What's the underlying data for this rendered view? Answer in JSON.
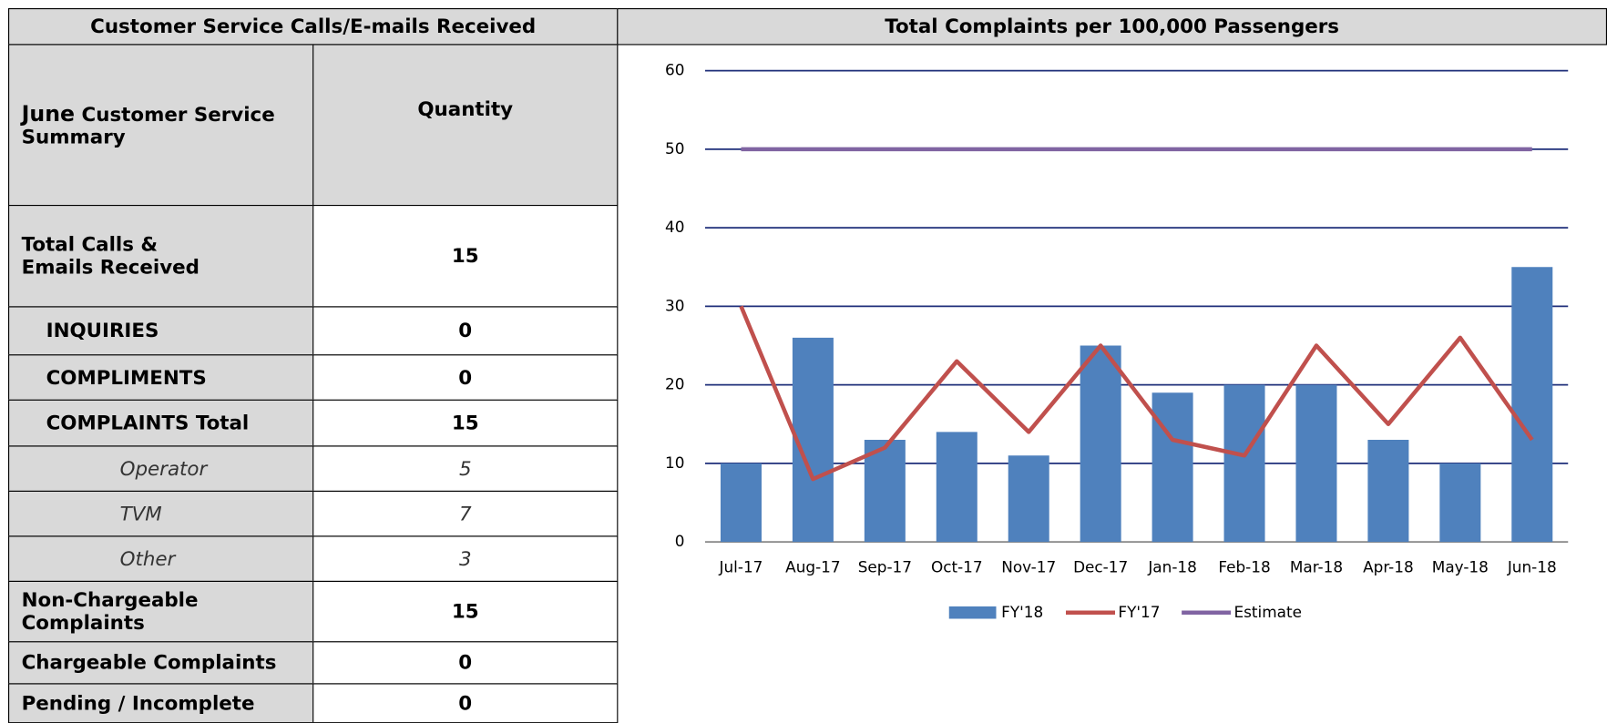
{
  "table": {
    "title": "Customer Service Calls/E-mails Received",
    "header": {
      "month": "June",
      "label": "Customer Service Summary",
      "quantity": "Quantity"
    },
    "rows": [
      [
        "Total Calls & Emails Received",
        15
      ],
      [
        "INQUIRIES",
        0
      ],
      [
        "COMPLIMENTS",
        0
      ],
      [
        "COMPLAINTS Total",
        15
      ],
      [
        "Operator",
        5
      ],
      [
        "TVM",
        7
      ],
      [
        "Other",
        3
      ],
      [
        "Non-Chargeable Complaints",
        15
      ],
      [
        "Chargeable Complaints",
        0
      ],
      [
        "Pending / Incomplete",
        0
      ]
    ]
  },
  "chart_data": {
    "type": "bar",
    "title": "Total Complaints per 100,000 Passengers",
    "categories": [
      "Jul-17",
      "Aug-17",
      "Sep-17",
      "Oct-17",
      "Nov-17",
      "Dec-17",
      "Jan-18",
      "Feb-18",
      "Mar-18",
      "Apr-18",
      "May-18",
      "Jun-18"
    ],
    "series": [
      {
        "name": "FY'18",
        "type": "bar",
        "color": "#4f81bd",
        "values": [
          10,
          26,
          13,
          14,
          11,
          25,
          19,
          20,
          20,
          13,
          10,
          35
        ]
      },
      {
        "name": "FY'17",
        "type": "line",
        "color": "#c0504d",
        "values": [
          30,
          8,
          12,
          23,
          14,
          25,
          13,
          11,
          25,
          15,
          26,
          13
        ]
      },
      {
        "name": "Estimate",
        "type": "line",
        "color": "#8064a2",
        "values": [
          50,
          50,
          50,
          50,
          50,
          50,
          50,
          50,
          50,
          50,
          50,
          50
        ]
      }
    ],
    "ylim": [
      0,
      60
    ],
    "yticks": [
      0,
      10,
      20,
      30,
      40,
      50,
      60
    ],
    "grid": true,
    "legend": "bottom"
  }
}
